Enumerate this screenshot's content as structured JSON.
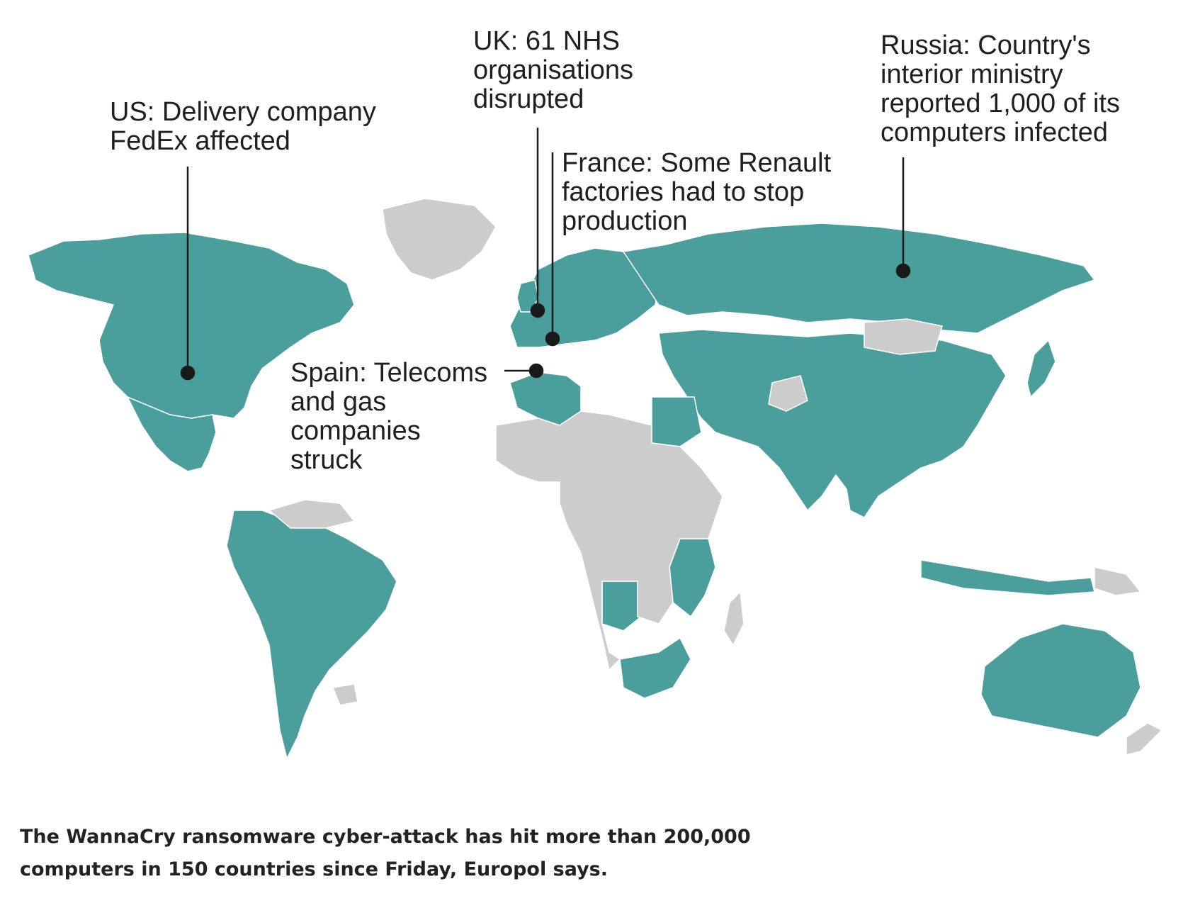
{
  "colors": {
    "affected": "#4a9e9c",
    "unaffected": "#cccccc",
    "leader": "#1a1a1a",
    "text": "#1f1f1f",
    "background": "#ffffff"
  },
  "callouts": {
    "us": "US: Delivery company\nFedEx affected",
    "uk": "UK: 61 NHS\norganisations\ndisrupted",
    "france": "France: Some Renault\nfactories had to stop\nproduction",
    "russia": "Russia: Country's\ninterior ministry\nreported 1,000 of its\ncomputers infected",
    "spain": "Spain: Telecoms\nand gas\ncompanies\nstruck"
  },
  "caption": "The WannaCry ransomware cyber-attack has hit more than 200,000\ncomputers in 150 countries since Friday, Europol says."
}
